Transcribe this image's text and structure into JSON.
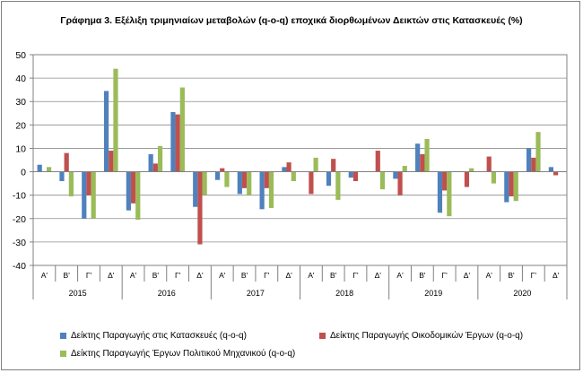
{
  "chart_data": {
    "type": "bar",
    "title": "Γράφημα 3. Εξέλιξη τριμηνιαίων μεταβολών (q-o-q) εποχικά διορθωμένων Δεικτών στις Κατασκευές (%)",
    "ylim": [
      -40,
      50
    ],
    "yticks": [
      50,
      40,
      30,
      20,
      10,
      0,
      -10,
      -20,
      -30,
      -40
    ],
    "grid": true,
    "legend_position": "bottom",
    "quarters": [
      "Α'",
      "Β'",
      "Γ'",
      "Δ'"
    ],
    "years": [
      "2015",
      "2016",
      "2017",
      "2018",
      "2019",
      "2020"
    ],
    "categories": [
      "Α' 2015",
      "Β' 2015",
      "Γ' 2015",
      "Δ' 2015",
      "Α' 2016",
      "Β' 2016",
      "Γ' 2016",
      "Δ' 2016",
      "Α' 2017",
      "Β' 2017",
      "Γ' 2017",
      "Δ' 2017",
      "Α' 2018",
      "Β' 2018",
      "Γ' 2018",
      "Δ' 2018",
      "Α' 2019",
      "Β' 2019",
      "Γ' 2019",
      "Δ' 2019",
      "Α' 2020",
      "Β' 2020",
      "Γ' 2020",
      "Δ' 2020"
    ],
    "series": [
      {
        "name": "Δείκτης Παραγωγής στις Κατασκευές (q-o-q)",
        "color": "#4f81bd",
        "values": [
          3.0,
          -4.0,
          -20.0,
          34.5,
          -16.5,
          7.5,
          25.5,
          -15.0,
          -3.5,
          -9.5,
          -16.0,
          2.0,
          0.0,
          -6.0,
          -2.5,
          0.0,
          -3.0,
          12.0,
          -17.5,
          0.0,
          0.0,
          -13.0,
          10.0,
          2.0
        ]
      },
      {
        "name": "Δείκτης Παραγωγής Οικοδομικών Έργων (q-o-q)",
        "color": "#c0504d",
        "values": [
          0.0,
          8.0,
          -10.0,
          9.0,
          -13.5,
          3.5,
          24.5,
          -31.0,
          1.5,
          -7.0,
          -7.0,
          4.0,
          -9.5,
          5.5,
          -4.0,
          9.0,
          -10.0,
          7.5,
          -8.0,
          -6.5,
          6.5,
          -10.5,
          6.0,
          -1.5
        ]
      },
      {
        "name": "Δείκτης Παραγωγής Έργων Πολιτικού Μηχανικού (q-o-q)",
        "color": "#9bbb59",
        "values": [
          2.0,
          -10.5,
          -20.0,
          44.0,
          -20.5,
          11.0,
          36.0,
          -10.0,
          -6.5,
          -10.0,
          -15.5,
          -4.0,
          6.0,
          -12.0,
          0.0,
          -7.5,
          2.5,
          14.0,
          -19.0,
          1.5,
          -5.0,
          -12.5,
          17.0,
          0.0
        ]
      }
    ]
  }
}
